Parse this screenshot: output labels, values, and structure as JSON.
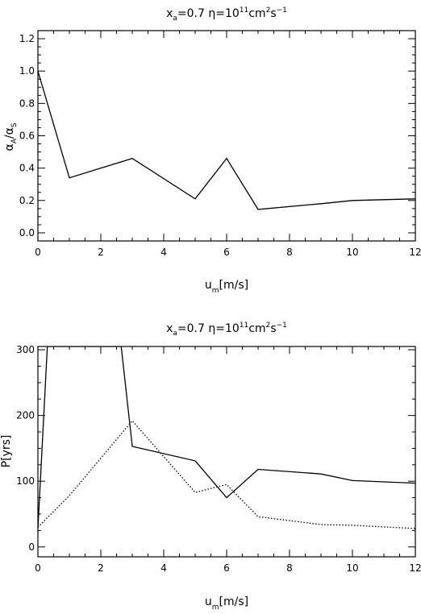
{
  "chart_data": [
    {
      "type": "line",
      "title": {
        "x_sym": "x",
        "x_sub": "a",
        "x_eq": "=0.7 ",
        "eta": "η",
        "eta_eq": "=10",
        "exp11": "11",
        "unit_cm": "cm",
        "exp2": "2",
        "unit_s": "s",
        "exp_m1": "−1"
      },
      "ylabel": {
        "a1": "α",
        "s1": "A",
        "slash": "/",
        "a2": "α",
        "s2": "S"
      },
      "xlabel": {
        "u": "u",
        "sub": "m",
        "rest": "[m/s]"
      },
      "xlim": [
        0,
        12
      ],
      "ylim": [
        -0.05,
        1.25
      ],
      "xticks": [
        "0",
        "2",
        "4",
        "6",
        "8",
        "10",
        "12"
      ],
      "yticks": [
        "0.0",
        "0.2",
        "0.4",
        "0.6",
        "0.8",
        "1.0",
        "1.2"
      ],
      "series": [
        {
          "style": "solid",
          "x": [
            0,
            1,
            3,
            5,
            6,
            7,
            9,
            10,
            12
          ],
          "y": [
            1.0,
            0.34,
            0.46,
            0.21,
            0.46,
            0.145,
            0.18,
            0.2,
            0.21
          ]
        }
      ]
    },
    {
      "type": "line",
      "title": {
        "x_sym": "x",
        "x_sub": "a",
        "x_eq": "=0.7 ",
        "eta": "η",
        "eta_eq": "=10",
        "exp11": "11",
        "unit_cm": "cm",
        "exp2": "2",
        "unit_s": "s",
        "exp_m1": "−1"
      },
      "ylabel": "P[yrs]",
      "xlabel": {
        "u": "u",
        "sub": "m",
        "rest": "[m/s]"
      },
      "xlim": [
        0,
        12
      ],
      "ylim": [
        -15,
        305
      ],
      "xticks": [
        "0",
        "2",
        "4",
        "6",
        "8",
        "10",
        "12"
      ],
      "yticks": [
        "0",
        "100",
        "200",
        "300"
      ],
      "series": [
        {
          "style": "solid",
          "x": [
            0,
            0.3,
            2.65,
            3,
            5,
            6,
            7,
            9,
            10,
            12
          ],
          "y": [
            28,
            305,
            305,
            153,
            131,
            75,
            118,
            111,
            101,
            97
          ]
        },
        {
          "style": "dotted",
          "x": [
            0,
            1,
            3,
            5,
            6,
            7,
            9,
            10,
            12
          ],
          "y": [
            30,
            78,
            192,
            83,
            95,
            46,
            34,
            33,
            28
          ]
        }
      ]
    }
  ]
}
